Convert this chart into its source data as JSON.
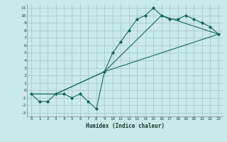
{
  "xlabel": "Humidex (Indice chaleur)",
  "ylabel": "",
  "background_color": "#c8eae8",
  "line_color": "#1a6b5a",
  "grid_color": "#a8ccca",
  "xlim": [
    -0.5,
    23.5
  ],
  "ylim": [
    -3.5,
    11.5
  ],
  "xticks": [
    0,
    1,
    2,
    3,
    4,
    5,
    6,
    7,
    8,
    9,
    10,
    11,
    12,
    13,
    14,
    15,
    16,
    17,
    18,
    19,
    20,
    21,
    22,
    23
  ],
  "yticks": [
    -3,
    -2,
    -1,
    0,
    1,
    2,
    3,
    4,
    5,
    6,
    7,
    8,
    9,
    10,
    11
  ],
  "line1_x": [
    0,
    1,
    2,
    3,
    4,
    5,
    6,
    7,
    8,
    9,
    10,
    11,
    12,
    13,
    14,
    15,
    16,
    17,
    18,
    19,
    20,
    21,
    22,
    23
  ],
  "line1_y": [
    -0.5,
    -1.5,
    -1.5,
    -0.5,
    -0.5,
    -1,
    -0.5,
    -1.5,
    -2.5,
    2.5,
    5,
    6.5,
    8,
    9.5,
    10,
    11,
    10,
    9.5,
    9.5,
    10,
    9.5,
    9,
    8.5,
    7.5
  ],
  "line2_x": [
    0,
    3,
    9,
    23
  ],
  "line2_y": [
    -0.5,
    -0.5,
    2.5,
    7.5
  ],
  "line3_x": [
    0,
    3,
    9,
    16,
    23
  ],
  "line3_y": [
    -0.5,
    -0.5,
    2.5,
    10,
    7.5
  ]
}
